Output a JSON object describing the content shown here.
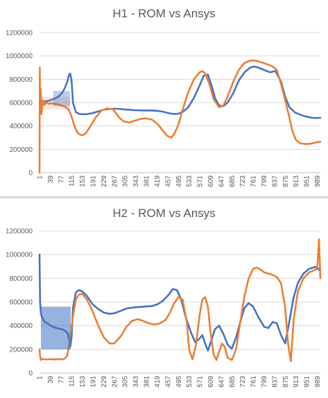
{
  "chart_data": [
    {
      "type": "line",
      "title": "H1 - ROM vs Ansys",
      "ylim": [
        0,
        1200000
      ],
      "y_ticks": [
        "0",
        "200000",
        "400000",
        "600000",
        "800000",
        "1000000",
        "1200000"
      ],
      "x_ticks": [
        "1",
        "39",
        "77",
        "115",
        "153",
        "191",
        "229",
        "267",
        "305",
        "343",
        "381",
        "419",
        "457",
        "495",
        "533",
        "571",
        "609",
        "647",
        "685",
        "723",
        "761",
        "799",
        "837",
        "875",
        "913",
        "951",
        "989"
      ],
      "x_range": [
        1,
        1000
      ],
      "grid": true,
      "colors": {
        "rom": "#4472c4",
        "ansys": "#ed7d31"
      },
      "series": [
        {
          "color": "#4472c4",
          "x": [
            1,
            10,
            20,
            30,
            40,
            50,
            60,
            70,
            80,
            90,
            100,
            105,
            110,
            115,
            120,
            130,
            140,
            153,
            170,
            190,
            210,
            230,
            250,
            267,
            290,
            310,
            340,
            370,
            400,
            420,
            440,
            460,
            480,
            495,
            510,
            530,
            550,
            571,
            585,
            600,
            615,
            625,
            640,
            655,
            670,
            690,
            710,
            730,
            750,
            765,
            780,
            800,
            820,
            840,
            860,
            875,
            890,
            910,
            930,
            950,
            970,
            989,
            1000
          ],
          "y": [
            600000,
            605000,
            610000,
            615000,
            620000,
            630000,
            640000,
            655000,
            680000,
            720000,
            780000,
            830000,
            850000,
            790000,
            600000,
            520000,
            505000,
            500000,
            502000,
            510000,
            525000,
            540000,
            545000,
            548000,
            545000,
            540000,
            535000,
            533000,
            532000,
            530000,
            522000,
            510000,
            502000,
            505000,
            520000,
            560000,
            640000,
            750000,
            830000,
            840000,
            730000,
            640000,
            575000,
            570000,
            600000,
            680000,
            790000,
            860000,
            900000,
            910000,
            900000,
            880000,
            860000,
            870000,
            780000,
            650000,
            560000,
            515000,
            495000,
            480000,
            470000,
            468000,
            470000
          ]
        },
        {
          "color": "#ed7d31",
          "x": [
            1,
            2,
            3,
            5,
            8,
            12,
            18,
            25,
            35,
            45,
            55,
            65,
            75,
            85,
            95,
            105,
            115,
            125,
            135,
            145,
            153,
            165,
            180,
            200,
            220,
            240,
            260,
            270,
            285,
            300,
            320,
            340,
            360,
            380,
            400,
            420,
            440,
            455,
            470,
            480,
            495,
            510,
            530,
            550,
            571,
            580,
            590,
            605,
            620,
            640,
            655,
            670,
            690,
            710,
            730,
            750,
            770,
            790,
            810,
            830,
            845,
            860,
            875,
            890,
            900,
            913,
            930,
            950,
            970,
            989,
            1000
          ],
          "y": [
            0,
            900000,
            550000,
            720000,
            500000,
            620000,
            580000,
            600000,
            590000,
            595000,
            590000,
            585000,
            580000,
            570000,
            560000,
            540000,
            480000,
            400000,
            345000,
            325000,
            320000,
            335000,
            390000,
            470000,
            530000,
            550000,
            545000,
            520000,
            470000,
            440000,
            430000,
            445000,
            460000,
            465000,
            455000,
            420000,
            360000,
            315000,
            300000,
            330000,
            410000,
            540000,
            690000,
            800000,
            860000,
            870000,
            850000,
            760000,
            630000,
            560000,
            575000,
            650000,
            780000,
            880000,
            940000,
            960000,
            960000,
            945000,
            930000,
            910000,
            880000,
            760000,
            620000,
            470000,
            360000,
            280000,
            250000,
            245000,
            250000,
            262000,
            265000
          ]
        }
      ]
    },
    {
      "type": "line",
      "title": "H2 - ROM vs Ansys",
      "ylim": [
        0,
        1200000
      ],
      "y_ticks": [
        "0",
        "200000",
        "400000",
        "600000",
        "800000",
        "1000000",
        "1200000"
      ],
      "x_ticks": [
        "1",
        "39",
        "77",
        "115",
        "153",
        "191",
        "229",
        "267",
        "305",
        "343",
        "381",
        "419",
        "457",
        "495",
        "533",
        "571",
        "609",
        "647",
        "685",
        "723",
        "761",
        "799",
        "837",
        "875",
        "913",
        "951",
        "989"
      ],
      "x_range": [
        1,
        1000
      ],
      "grid": true,
      "colors": {
        "rom": "#4472c4",
        "ansys": "#ed7d31"
      },
      "series": [
        {
          "color": "#4472c4",
          "x": [
            1,
            3,
            6,
            10,
            15,
            20,
            30,
            40,
            50,
            60,
            70,
            80,
            90,
            100,
            105,
            110,
            115,
            120,
            130,
            140,
            153,
            170,
            190,
            210,
            230,
            250,
            267,
            290,
            310,
            340,
            370,
            400,
            420,
            440,
            460,
            475,
            490,
            505,
            520,
            540,
            555,
            570,
            580,
            590,
            600,
            610,
            625,
            640,
            655,
            670,
            685,
            700,
            715,
            730,
            745,
            761,
            780,
            800,
            815,
            830,
            845,
            860,
            875,
            890,
            905,
            920,
            940,
            960,
            980,
            989,
            1000
          ],
          "y": [
            1000000,
            600000,
            500000,
            470000,
            450000,
            430000,
            420000,
            400000,
            390000,
            380000,
            375000,
            370000,
            360000,
            340000,
            300000,
            220000,
            300000,
            550000,
            680000,
            700000,
            690000,
            650000,
            580000,
            540000,
            510000,
            500000,
            505000,
            525000,
            545000,
            555000,
            560000,
            565000,
            580000,
            610000,
            660000,
            710000,
            700000,
            620000,
            480000,
            340000,
            260000,
            290000,
            320000,
            250000,
            190000,
            260000,
            370000,
            400000,
            330000,
            240000,
            205000,
            300000,
            430000,
            550000,
            590000,
            560000,
            470000,
            390000,
            380000,
            430000,
            420000,
            320000,
            250000,
            440000,
            640000,
            760000,
            840000,
            880000,
            895000,
            890000,
            860000
          ]
        },
        {
          "color": "#ed7d31",
          "x": [
            1,
            3,
            6,
            10,
            20,
            30,
            40,
            50,
            60,
            70,
            80,
            90,
            100,
            110,
            120,
            130,
            140,
            153,
            170,
            190,
            210,
            230,
            250,
            267,
            290,
            310,
            330,
            350,
            370,
            390,
            410,
            430,
            450,
            465,
            480,
            495,
            510,
            525,
            533,
            545,
            557,
            570,
            580,
            590,
            600,
            609,
            620,
            630,
            640,
            650,
            660,
            670,
            685,
            700,
            715,
            730,
            745,
            761,
            775,
            790,
            800,
            815,
            830,
            845,
            860,
            875,
            885,
            895,
            905,
            920,
            940,
            960,
            980,
            989,
            995,
            1000
          ],
          "y": [
            200000,
            140000,
            110000,
            120000,
            115000,
            115000,
            118000,
            115000,
            115000,
            118000,
            115000,
            120000,
            150000,
            300000,
            480000,
            620000,
            660000,
            670000,
            620000,
            520000,
            400000,
            300000,
            250000,
            250000,
            310000,
            390000,
            440000,
            455000,
            440000,
            420000,
            410000,
            420000,
            450000,
            510000,
            590000,
            640000,
            620000,
            430000,
            200000,
            115000,
            230000,
            480000,
            620000,
            640000,
            560000,
            350000,
            160000,
            110000,
            180000,
            250000,
            220000,
            130000,
            110000,
            200000,
            430000,
            650000,
            800000,
            880000,
            890000,
            870000,
            850000,
            840000,
            830000,
            810000,
            760000,
            550000,
            250000,
            100000,
            450000,
            690000,
            800000,
            850000,
            870000,
            880000,
            1130000,
            800000
          ]
        }
      ]
    }
  ]
}
